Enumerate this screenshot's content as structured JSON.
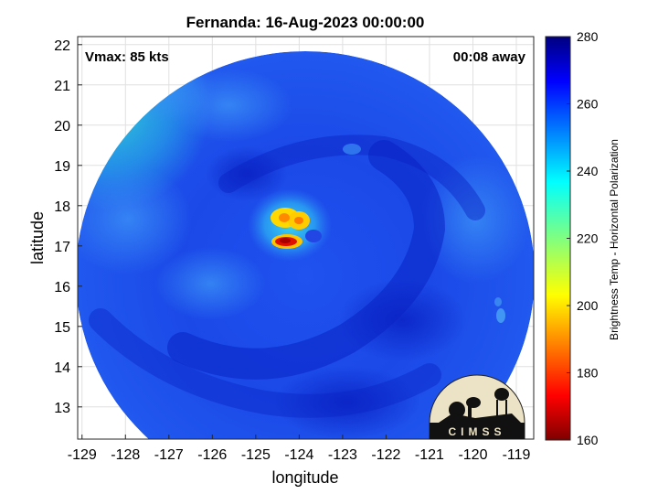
{
  "title": "Fernanda: 16-Aug-2023 00:00:00",
  "vmax_label": "Vmax: 85 kts",
  "away_label": "00:08 away",
  "axes": {
    "xlabel": "longitude",
    "ylabel": "latitude",
    "xlim": [
      -129.1,
      -118.6
    ],
    "ylim": [
      12.2,
      22.2
    ],
    "xticks": [
      -129,
      -128,
      -127,
      -126,
      -125,
      -124,
      -123,
      -122,
      -121,
      -120,
      -119
    ],
    "yticks": [
      13,
      14,
      15,
      16,
      17,
      18,
      19,
      20,
      21,
      22
    ],
    "grid": true
  },
  "colorbar": {
    "label": "Brightness Temp - Horizontal Polarization",
    "min": 160,
    "max": 280,
    "ticks": [
      160,
      180,
      200,
      220,
      240,
      260,
      280
    ],
    "colormap": "jet"
  },
  "storm_center": {
    "lon": -124.4,
    "lat": 17.3
  },
  "logo": {
    "text": "CIMSS"
  },
  "colors": {
    "disc_base": "#1740e6",
    "disc_dark": "#0d2ad0",
    "disc_light": "#2f82f5",
    "cyan_edge": "#2fd2d2",
    "eye_red": "#d40000",
    "eye_yellow": "#ffd800",
    "logo_bg": "#ece3c6"
  }
}
